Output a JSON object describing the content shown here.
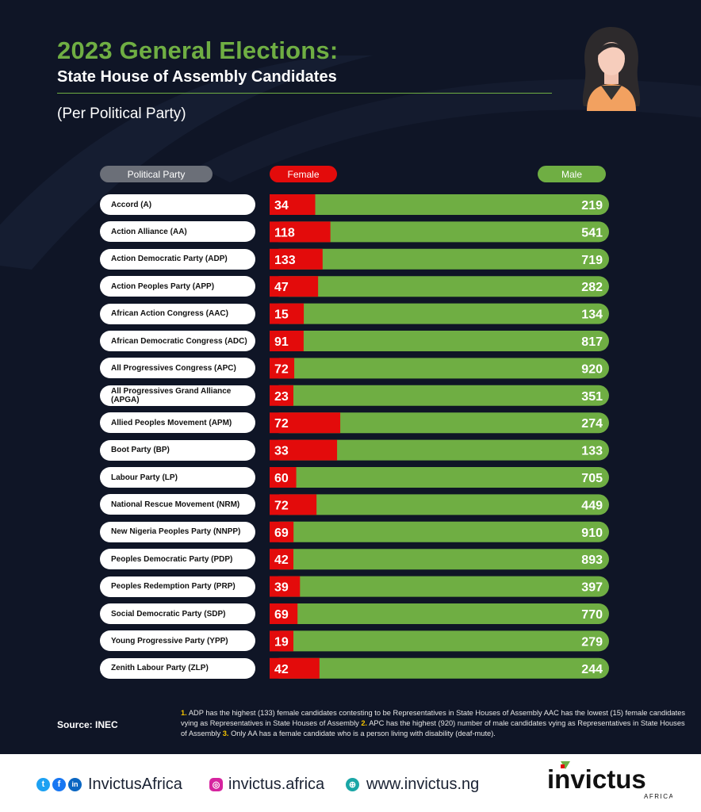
{
  "header": {
    "title": "2023 General Elections:",
    "subtitle": "State House of Assembly Candidates",
    "per": "(Per Political Party)"
  },
  "columns": {
    "party": "Political Party",
    "female": "Female",
    "male": "Male"
  },
  "colors": {
    "female": "#e30b0b",
    "male": "#6fae43",
    "background": "#0f1526",
    "accent_green": "#6fae43",
    "note_number": "#f5c400"
  },
  "chart_data": {
    "type": "bar",
    "stacked": true,
    "orientation": "horizontal",
    "categories": [
      "Accord (A)",
      "Action Alliance (AA)",
      "Action Democratic Party (ADP)",
      "Action Peoples Party (APP)",
      "African Action Congress (AAC)",
      "African Democratic Congress (ADC)",
      "All Progressives Congress (APC)",
      "All Progressives Grand Alliance (APGA)",
      "Allied Peoples Movement (APM)",
      "Boot Party (BP)",
      "Labour Party (LP)",
      "National Rescue Movement (NRM)",
      "New Nigeria Peoples Party (NNPP)",
      "Peoples Democratic Party (PDP)",
      "Peoples Redemption Party (PRP)",
      "Social Democratic Party (SDP)",
      "Young Progressive Party (YPP)",
      "Zenith Labour Party (ZLP)"
    ],
    "series": [
      {
        "name": "Female",
        "values": [
          34,
          118,
          133,
          47,
          15,
          91,
          72,
          23,
          72,
          33,
          60,
          72,
          69,
          42,
          39,
          69,
          19,
          42
        ]
      },
      {
        "name": "Male",
        "values": [
          219,
          541,
          719,
          282,
          134,
          817,
          920,
          351,
          274,
          133,
          705,
          449,
          910,
          893,
          397,
          770,
          279,
          244
        ]
      }
    ],
    "title": "2023 General Elections:",
    "subtitle": "State House of Assembly Candidates"
  },
  "notes": {
    "n1": "1.",
    "t1": " ADP has the highest (133) female candidates contesting to be Representatives in State Houses of Assembly AAC has the lowest (15) female candidates vying as Representatives in State Houses of Assembly ",
    "n2": "2.",
    "t2": " APC has the highest (920) number of male candidates vying as Representatives in State Houses of Assembly  ",
    "n3": "3.",
    "t3": " Only AA has a female candidate who is a person living with disability (deaf-mute)."
  },
  "source": "Source: INEC",
  "footer": {
    "social_handle": "InvictusAfrica",
    "instagram": "invictus.africa",
    "website": "www.invictus.ng",
    "logo_main": "invictus",
    "logo_sub": "AFRICA",
    "icons": [
      "twitter-icon",
      "facebook-icon",
      "linkedin-icon",
      "instagram-icon",
      "globe-icon"
    ]
  }
}
